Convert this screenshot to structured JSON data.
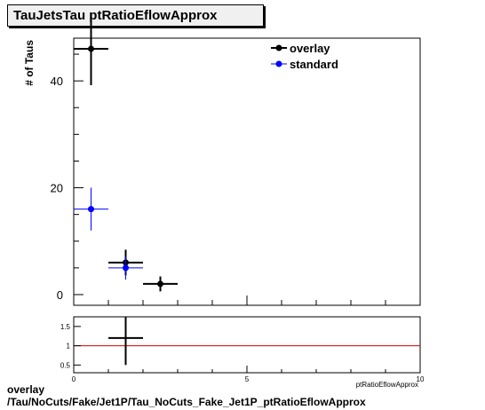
{
  "title": "TauJetsTau ptRatioEflowApprox",
  "footer": {
    "line1": "overlay",
    "line2": "/Tau/NoCuts/Fake/Jet1P/Tau_NoCuts_Fake_Jet1P_ptRatioEflowApprox"
  },
  "chart_data": [
    {
      "type": "scatter",
      "ylabel": "# of Taus",
      "xlim": [
        0,
        10
      ],
      "ylim": [
        -2,
        48
      ],
      "y_ticks": [
        0,
        20,
        40
      ],
      "legend_position": "top-right",
      "series": [
        {
          "name": "overlay",
          "color": "#000000",
          "points": [
            {
              "x": 0.5,
              "y": 46,
              "xerr": 0.5,
              "yerr": 6.8
            },
            {
              "x": 1.5,
              "y": 6,
              "xerr": 0.5,
              "yerr": 2.4
            },
            {
              "x": 2.5,
              "y": 2,
              "xerr": 0.5,
              "yerr": 1.4
            }
          ]
        },
        {
          "name": "standard",
          "color": "#0000ff",
          "points": [
            {
              "x": 0.5,
              "y": 16,
              "xerr": 0.5,
              "yerr": 4.0
            },
            {
              "x": 1.5,
              "y": 5,
              "xerr": 0.5,
              "yerr": 2.2
            }
          ]
        }
      ]
    },
    {
      "type": "scatter",
      "xlabel": "ptRatioEflowApprox",
      "xlim": [
        0,
        10
      ],
      "ylim": [
        0.3,
        1.75
      ],
      "x_ticks": [
        0,
        5,
        10
      ],
      "y_ticks": [
        0.5,
        1,
        1.5
      ],
      "reference_line": {
        "y": 1,
        "color": "#cc0000"
      },
      "series": [
        {
          "color": "#000000",
          "points": [
            {
              "x": 1.5,
              "y": 1.2,
              "xerr": 0.5,
              "yerr": 0.7
            }
          ]
        }
      ]
    }
  ]
}
